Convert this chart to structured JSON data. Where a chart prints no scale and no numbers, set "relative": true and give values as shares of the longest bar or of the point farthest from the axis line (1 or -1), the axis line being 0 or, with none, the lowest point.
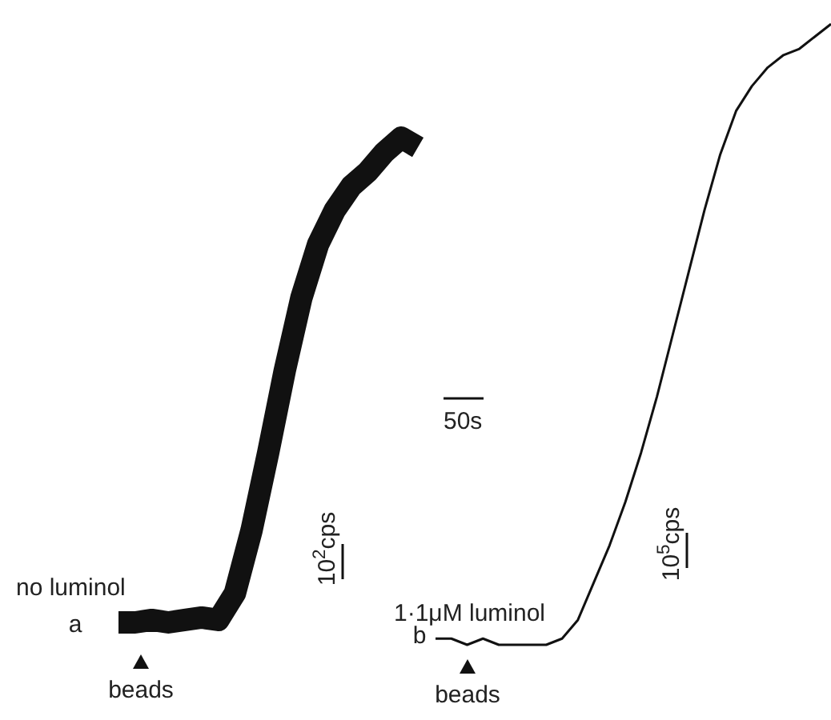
{
  "chart_data": [
    {
      "type": "line",
      "relative": true,
      "categories": [
        null,
        null,
        null,
        null,
        null,
        null,
        null,
        null,
        null,
        null,
        null,
        null,
        null,
        null,
        null,
        null,
        null,
        null,
        null
      ],
      "series": [
        {
          "color": "#111111",
          "values": [
            0,
            0,
            0.005,
            0,
            0.005,
            0.01,
            0.005,
            0.06,
            0.19,
            0.35,
            0.52,
            0.67,
            0.78,
            0.85,
            0.9,
            0.93,
            0.97,
            1,
            0.98
          ]
        }
      ],
      "annotations": [
        "no luminol",
        "a",
        "beads",
        "10$^{2}$cps"
      ]
    },
    {
      "type": "line",
      "relative": true,
      "categories": [
        null,
        null,
        null,
        null,
        null,
        null,
        null,
        null,
        null,
        null,
        null,
        null,
        null,
        null,
        null,
        null,
        null,
        null,
        null,
        null,
        null,
        null,
        null,
        null,
        null,
        null
      ],
      "series": [
        {
          "color": "#111111",
          "values": [
            0.01,
            0.01,
            0,
            0.01,
            0,
            0,
            0,
            0,
            0.01,
            0.04,
            0.1,
            0.16,
            0.23,
            0.31,
            0.4,
            0.5,
            0.6,
            0.7,
            0.79,
            0.86,
            0.9,
            0.93,
            0.95,
            0.96,
            0.98,
            1
          ]
        }
      ],
      "annotations": [
        "1·1μM luminol",
        "b",
        "beads",
        "10$^{5}$cps",
        "50s"
      ]
    }
  ]
}
